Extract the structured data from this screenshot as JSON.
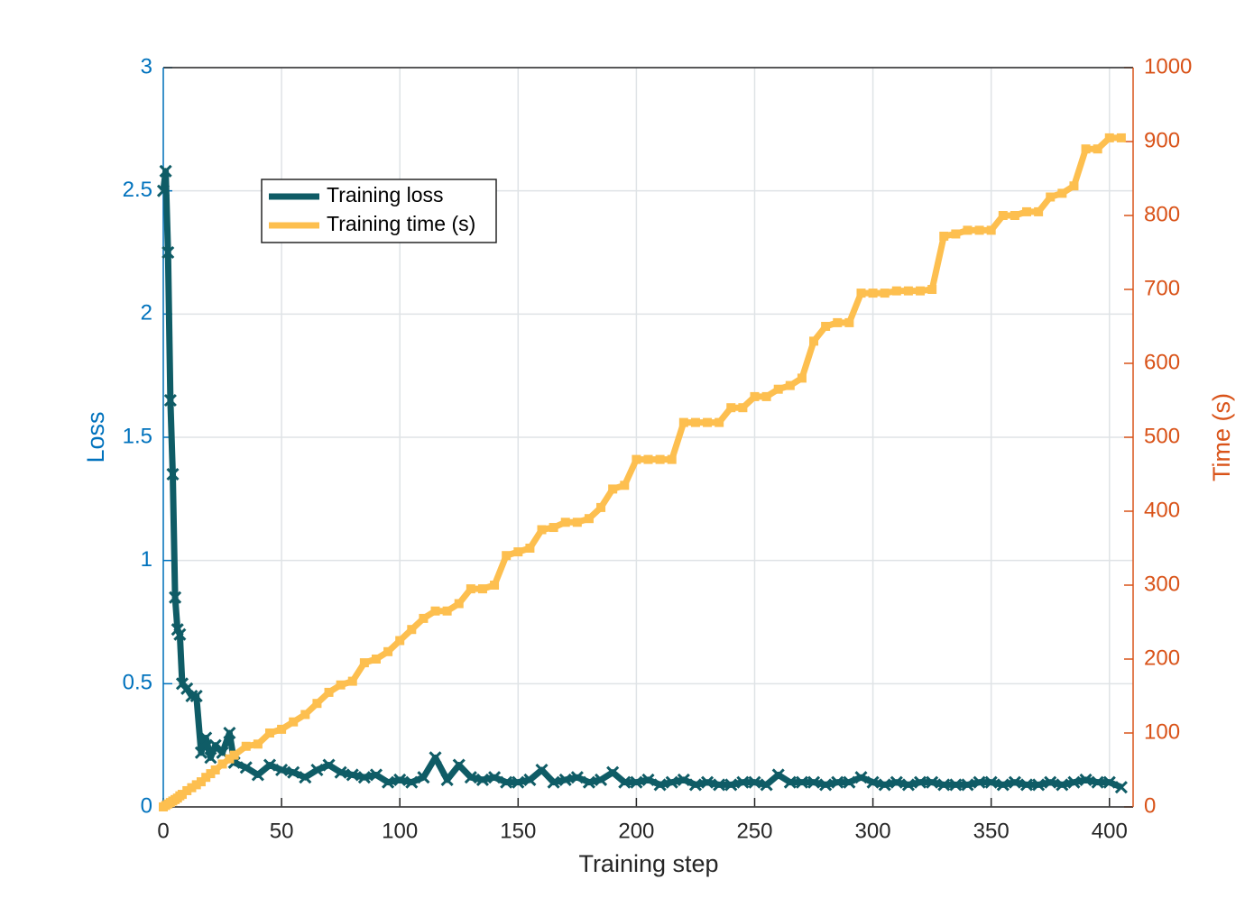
{
  "chart_data": {
    "type": "line",
    "xlabel": "Training step",
    "ylabel": "Loss",
    "y2label": "Time (s)",
    "x": [
      0,
      1,
      2,
      3,
      4,
      5,
      6,
      7,
      8,
      10,
      12,
      14,
      16,
      18,
      20,
      22,
      25,
      28,
      30,
      35,
      40,
      45,
      50,
      55,
      60,
      65,
      70,
      75,
      80,
      85,
      90,
      95,
      100,
      105,
      110,
      115,
      120,
      125,
      130,
      135,
      140,
      145,
      150,
      155,
      160,
      165,
      170,
      175,
      180,
      185,
      190,
      195,
      200,
      205,
      210,
      215,
      220,
      225,
      230,
      235,
      240,
      245,
      250,
      255,
      260,
      265,
      270,
      275,
      280,
      285,
      290,
      295,
      300,
      305,
      310,
      315,
      320,
      325,
      330,
      335,
      340,
      345,
      350,
      355,
      360,
      365,
      370,
      375,
      380,
      385,
      390,
      395,
      400,
      405
    ],
    "series": [
      {
        "name": "Training loss",
        "color": "#0f5c66",
        "axis": "y",
        "values": [
          2.5,
          2.58,
          2.25,
          1.65,
          1.35,
          0.85,
          0.72,
          0.7,
          0.5,
          0.48,
          0.45,
          0.45,
          0.22,
          0.28,
          0.2,
          0.25,
          0.22,
          0.3,
          0.18,
          0.16,
          0.13,
          0.17,
          0.15,
          0.14,
          0.12,
          0.15,
          0.17,
          0.14,
          0.13,
          0.12,
          0.13,
          0.1,
          0.11,
          0.1,
          0.12,
          0.2,
          0.11,
          0.17,
          0.12,
          0.11,
          0.12,
          0.1,
          0.1,
          0.11,
          0.15,
          0.1,
          0.11,
          0.12,
          0.1,
          0.11,
          0.14,
          0.1,
          0.1,
          0.11,
          0.09,
          0.1,
          0.11,
          0.09,
          0.1,
          0.09,
          0.09,
          0.1,
          0.1,
          0.09,
          0.13,
          0.1,
          0.1,
          0.1,
          0.09,
          0.1,
          0.1,
          0.12,
          0.1,
          0.09,
          0.1,
          0.09,
          0.1,
          0.1,
          0.09,
          0.09,
          0.09,
          0.1,
          0.1,
          0.09,
          0.1,
          0.09,
          0.09,
          0.1,
          0.09,
          0.1,
          0.11,
          0.1,
          0.1,
          0.08
        ]
      },
      {
        "name": "Training time (s)",
        "color": "#fdbf4f",
        "axis": "y2",
        "values": [
          0,
          2,
          4,
          6,
          8,
          10,
          12,
          15,
          17,
          22,
          26,
          30,
          34,
          40,
          45,
          50,
          58,
          65,
          70,
          82,
          85,
          100,
          105,
          115,
          125,
          140,
          155,
          165,
          170,
          195,
          200,
          210,
          225,
          240,
          255,
          265,
          265,
          275,
          295,
          295,
          300,
          340,
          345,
          350,
          375,
          378,
          385,
          385,
          390,
          405,
          430,
          435,
          470,
          470,
          470,
          470,
          520,
          520,
          520,
          520,
          540,
          540,
          555,
          555,
          565,
          570,
          580,
          630,
          650,
          655,
          655,
          695,
          695,
          695,
          698,
          698,
          698,
          700,
          772,
          775,
          780,
          780,
          780,
          800,
          800,
          805,
          805,
          825,
          830,
          840,
          890,
          890,
          905,
          905
        ]
      }
    ],
    "xlim": [
      0,
      410
    ],
    "xticks": [
      0,
      50,
      100,
      150,
      200,
      250,
      300,
      350,
      400
    ],
    "ylim": [
      0,
      3
    ],
    "yticks": [
      0,
      0.5,
      1,
      1.5,
      2,
      2.5,
      3
    ],
    "y2lim": [
      0,
      1000
    ],
    "y2ticks": [
      0,
      100,
      200,
      300,
      400,
      500,
      600,
      700,
      800,
      900,
      1000
    ],
    "grid": true,
    "legend": "upper left",
    "ycolor": "#0072bd",
    "y2color": "#d95319"
  }
}
